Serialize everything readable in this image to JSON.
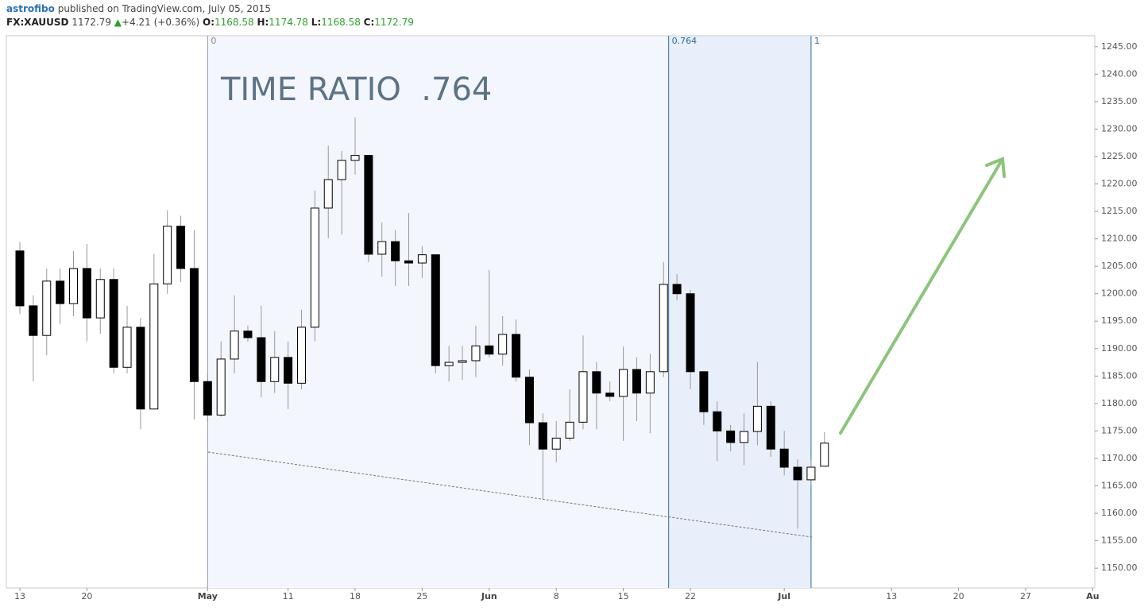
{
  "header": {
    "author": "astrofibo",
    "published": "published on TradingView.com, July 05, 2015",
    "symbol": "FX:XAUUSD",
    "last": "1172.79",
    "change": "+4.21 (+0.36%)",
    "ohlc": [
      {
        "label": "O:",
        "value": "1168.58"
      },
      {
        "label": "H:",
        "value": "1174.78"
      },
      {
        "label": "L:",
        "value": "1168.58"
      },
      {
        "label": "C:",
        "value": "1172.79"
      }
    ]
  },
  "chart_data": {
    "type": "candlestick",
    "annotation": "TIME RATIO  .764",
    "categories": [
      "13",
      null,
      null,
      null,
      null,
      "20",
      null,
      null,
      null,
      null,
      null,
      null,
      null,
      null,
      "May",
      null,
      null,
      null,
      null,
      null,
      "11",
      null,
      null,
      null,
      null,
      "18",
      null,
      null,
      null,
      null,
      "25",
      null,
      null,
      null,
      null,
      "Jun",
      null,
      null,
      null,
      null,
      "8",
      null,
      null,
      null,
      null,
      "15",
      null,
      null,
      null,
      null,
      "22",
      null,
      null,
      null,
      null,
      null,
      null,
      "Jul",
      null,
      null,
      null,
      null,
      null,
      null,
      null,
      "13",
      null,
      null,
      null,
      null,
      "20",
      null,
      null,
      null,
      null,
      "27",
      null,
      null,
      null,
      null,
      "Au"
    ],
    "open": [
      1207.8,
      1197.8,
      1192.4,
      1202.3,
      1198.2,
      1204.6,
      1195.6,
      1202.6,
      1186.6,
      1193.9,
      1179.0,
      1201.8,
      1212.3,
      1204.6,
      1184.0,
      1177.9,
      1188.1,
      1193.2,
      1192.0,
      1184.0,
      1188.4,
      1183.7,
      1193.9,
      1215.6,
      1220.8,
      1224.3,
      1225.2,
      1207.2,
      1209.5,
      1206.0,
      1205.6,
      1207.1,
      1186.9,
      1187.5,
      1187.8,
      1190.5,
      1189.0,
      1192.6,
      1184.8,
      1176.5,
      1171.7,
      1173.7,
      1176.6,
      1185.8,
      1181.9,
      1181.3,
      1186.2,
      1181.9,
      1185.8,
      1201.7,
      1200.0,
      1185.8,
      1178.5,
      1175.0,
      1172.9,
      1174.9,
      1179.5,
      1171.7,
      1168.4,
      1166.1,
      1168.58,
      null,
      null,
      null,
      null,
      null,
      null,
      null,
      null,
      null,
      null,
      null,
      null,
      null,
      null,
      null,
      null,
      null,
      null,
      null,
      null
    ],
    "high": [
      1209.4,
      1199.7,
      1204.6,
      1204.6,
      1207.8,
      1209.1,
      1204.6,
      1204.6,
      1197.8,
      1195.6,
      1207.2,
      1215.2,
      1214.2,
      1211.6,
      1185.5,
      1191.3,
      1199.7,
      1194.2,
      1197.8,
      1193.2,
      1191.3,
      1197.1,
      1218.8,
      1227.0,
      1226.0,
      1232.1,
      1225.2,
      1213.0,
      1211.6,
      1214.7,
      1208.7,
      1207.1,
      1190.5,
      1190.5,
      1194.2,
      1204.3,
      1195.9,
      1195.3,
      1186.2,
      1178.2,
      1176.8,
      1182.6,
      1192.4,
      1187.6,
      1184.0,
      1190.4,
      1188.4,
      1189.1,
      1205.8,
      1203.6,
      1200.7,
      1185.8,
      1180.4,
      1176.1,
      1178.2,
      1187.6,
      1180.4,
      1175.0,
      1169.8,
      1169.8,
      1174.78,
      null,
      null,
      null,
      null,
      null,
      null,
      null,
      null,
      null,
      null,
      null,
      null,
      null,
      null,
      null,
      null,
      null,
      null,
      null,
      null
    ],
    "low": [
      1196.3,
      1184.0,
      1188.8,
      1194.5,
      1195.9,
      1191.3,
      1192.7,
      1185.5,
      1185.5,
      1175.3,
      1179.0,
      1200.0,
      1202.1,
      1177.1,
      1176.8,
      1177.6,
      1185.5,
      1191.3,
      1181.1,
      1181.9,
      1179.0,
      1182.6,
      1191.3,
      1210.1,
      1210.8,
      1221.7,
      1205.8,
      1203.1,
      1201.4,
      1201.4,
      1202.9,
      1185.5,
      1184.0,
      1184.3,
      1184.8,
      1188.4,
      1186.9,
      1184.0,
      1172.4,
      1162.6,
      1169.3,
      1173.2,
      1175.3,
      1175.3,
      1180.4,
      1173.2,
      1176.8,
      1174.6,
      1184.8,
      1198.8,
      1182.6,
      1176.1,
      1169.5,
      1171.3,
      1168.8,
      1172.4,
      1170.3,
      1166.9,
      1157.2,
      1165.2,
      1168.58,
      null,
      null,
      null,
      null,
      null,
      null,
      null,
      null,
      null,
      null,
      null,
      null,
      null,
      null,
      null,
      null,
      null,
      null,
      null,
      null
    ],
    "close": [
      1197.8,
      1192.4,
      1202.3,
      1198.2,
      1204.6,
      1195.6,
      1202.6,
      1186.6,
      1193.9,
      1179.0,
      1201.8,
      1212.3,
      1204.6,
      1184.0,
      1177.9,
      1188.1,
      1193.2,
      1192.0,
      1184.0,
      1188.4,
      1183.7,
      1193.9,
      1215.6,
      1220.8,
      1224.3,
      1225.2,
      1207.2,
      1209.5,
      1206.0,
      1205.6,
      1207.1,
      1186.9,
      1187.5,
      1187.8,
      1190.5,
      1189.0,
      1192.6,
      1184.8,
      1176.5,
      1171.7,
      1173.7,
      1176.6,
      1185.8,
      1181.9,
      1181.3,
      1186.2,
      1181.9,
      1185.8,
      1201.7,
      1200.0,
      1185.8,
      1178.5,
      1175.0,
      1172.9,
      1174.9,
      1179.5,
      1171.7,
      1168.4,
      1166.1,
      1168.4,
      1172.79,
      null,
      null,
      null,
      null,
      null,
      null,
      null,
      null,
      null,
      null,
      null,
      null,
      null,
      null,
      null,
      null,
      null,
      null,
      null,
      null
    ],
    "up_color": "#ffffff",
    "down_color": "#000000",
    "ylim": [
      1146.4,
      1247.0
    ],
    "yticks": [
      {
        "value": 1150,
        "label": "1150.00"
      },
      {
        "value": 1155,
        "label": "1155.00"
      },
      {
        "value": 1160,
        "label": "1160.00"
      },
      {
        "value": 1165,
        "label": "1165.00"
      },
      {
        "value": 1170,
        "label": "1170.00"
      },
      {
        "value": 1175,
        "label": "1175.00"
      },
      {
        "value": 1180,
        "label": "1180.00"
      },
      {
        "value": 1185,
        "label": "1185.00"
      },
      {
        "value": 1190,
        "label": "1190.00"
      },
      {
        "value": 1195,
        "label": "1195.00"
      },
      {
        "value": 1200,
        "label": "1200.00"
      },
      {
        "value": 1205,
        "label": "1205.00"
      },
      {
        "value": 1210,
        "label": "1210.00"
      },
      {
        "value": 1215,
        "label": "1215.00"
      },
      {
        "value": 1220,
        "label": "1220.00"
      },
      {
        "value": 1225,
        "label": "1225.00"
      },
      {
        "value": 1230,
        "label": "1230.00"
      },
      {
        "value": 1235,
        "label": "1235.00"
      },
      {
        "value": 1240,
        "label": "1240.00"
      },
      {
        "value": 1245,
        "label": "1245.00"
      }
    ],
    "fib_levels": [
      0,
      0.764,
      1
    ]
  }
}
